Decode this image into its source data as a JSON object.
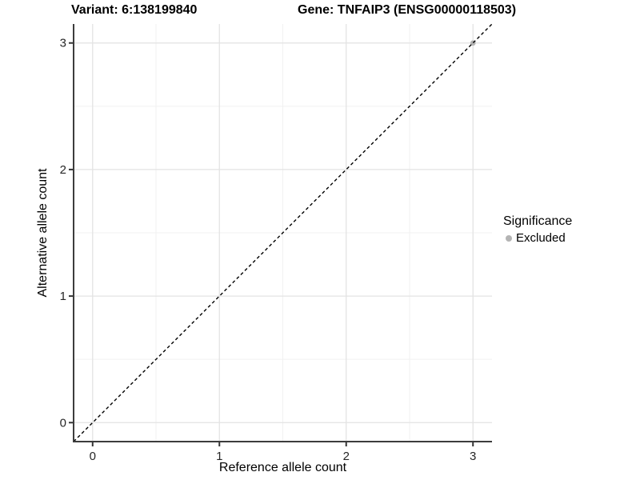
{
  "titles": {
    "variant": "Variant: 6:138199840",
    "gene": "Gene: TNFAIP3 (ENSG00000118503)"
  },
  "legend": {
    "title": "Significance",
    "items": [
      {
        "label": "Excluded",
        "color": "#b4b4b4",
        "marker": "circle"
      }
    ]
  },
  "colors": {
    "grid_major": "#e3e3e3",
    "grid_minor": "#f1f1f1",
    "axis_line": "#3c3c3c",
    "tick_mark": "#333333",
    "tick_text": "#262626",
    "reference_line": "#000000",
    "excluded_point": "#b4b4b4",
    "background": "#ffffff"
  },
  "chart_data": {
    "type": "scatter",
    "title": "Variant: 6:138199840 — Gene: TNFAIP3 (ENSG00000118503)",
    "xlabel": "Reference allele count",
    "ylabel": "Alternative allele count",
    "xlim": [
      -0.15,
      3.15
    ],
    "ylim": [
      -0.15,
      3.15
    ],
    "x_ticks": [
      0,
      1,
      2,
      3
    ],
    "y_ticks": [
      0,
      1,
      2,
      3
    ],
    "grid": {
      "major": true,
      "minor": true
    },
    "legend_position": "right",
    "series": [
      {
        "name": "Excluded",
        "color": "#b4b4b4",
        "points": [
          [
            3,
            3
          ]
        ]
      }
    ],
    "reference_line": {
      "kind": "identity",
      "style": "dashed",
      "x0": -0.15,
      "y0": -0.15,
      "x1": 3.15,
      "y1": 3.15,
      "color": "#000000"
    }
  }
}
